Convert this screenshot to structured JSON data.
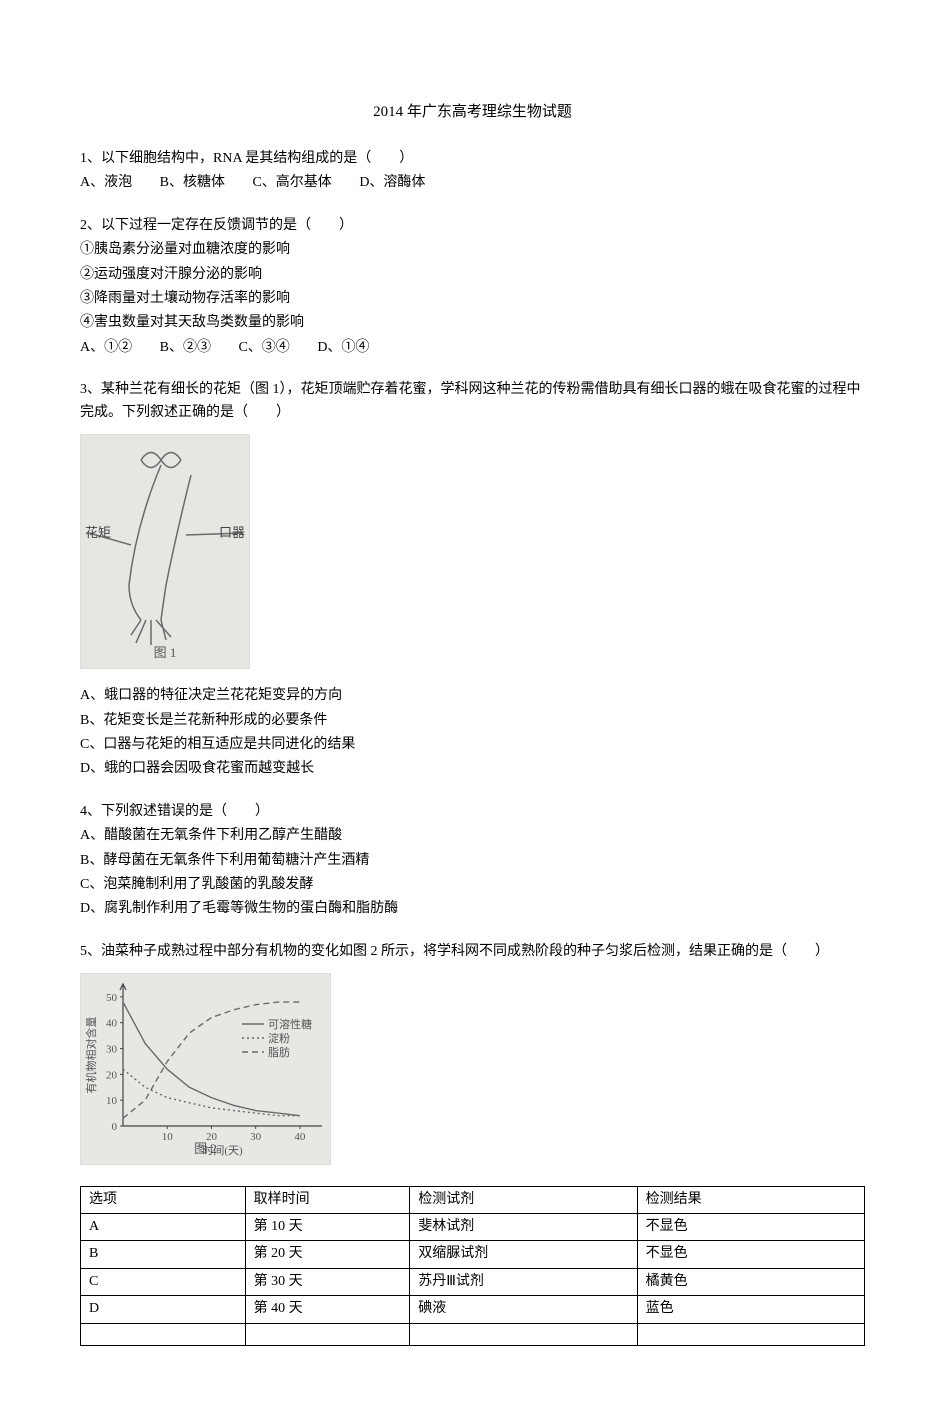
{
  "page_title": "2014 年广东高考理综生物试题",
  "q1": {
    "text": "1、以下细胞结构中，RNA 是其结构组成的是（　　）",
    "options": {
      "A": "A、液泡",
      "B": "B、核糖体",
      "C": "C、高尔基体",
      "D": "D、溶酶体"
    }
  },
  "q2": {
    "text": "2、以下过程一定存在反馈调节的是（　　）",
    "items": {
      "i1": "①胰岛素分泌量对血糖浓度的影响",
      "i2": "②运动强度对汗腺分泌的影响",
      "i3": "③降雨量对土壤动物存活率的影响",
      "i4": "④害虫数量对其天敌鸟类数量的影响"
    },
    "options": {
      "A": "A、①②",
      "B": "B、②③",
      "C": "C、③④",
      "D": "D、①④"
    }
  },
  "q3": {
    "text": "3、某种兰花有细长的花矩（图 1），花矩顶端贮存着花蜜，学科网这种兰花的传粉需借助具有细长口器的蛾在吸食花蜜的过程中完成。下列叙述正确的是（　　）",
    "fig": {
      "caption": "图 1",
      "label_left": "花矩",
      "label_right": "口器",
      "bg": "#e8e6e2"
    },
    "options": {
      "A": "A、蛾口器的特征决定兰花花矩变异的方向",
      "B": "B、花矩变长是兰花新种形成的必要条件",
      "C": "C、口器与花矩的相互适应是共同进化的结果",
      "D": "D、蛾的口器会因吸食花蜜而越变越长"
    }
  },
  "q4": {
    "text": "4、下列叙述错误的是（　　）",
    "options": {
      "A": "A、醋酸菌在无氧条件下利用乙醇产生醋酸",
      "B": "B、酵母菌在无氧条件下利用葡萄糖汁产生酒精",
      "C": "C、泡菜腌制利用了乳酸菌的乳酸发酵",
      "D": "D、腐乳制作利用了毛霉等微生物的蛋白酶和脂肪酶"
    }
  },
  "q5": {
    "text": "5、油菜种子成熟过程中部分有机物的变化如图 2 所示，将学科网不同成熟阶段的种子匀浆后检测，结果正确的是（　　）",
    "chart": {
      "caption": "图 2",
      "bg": "#e9e7e3",
      "ylabel": "有机物相对含量",
      "xlabel": "时间(天)",
      "yticks": [
        "0",
        "10",
        "20",
        "30",
        "40",
        "50"
      ],
      "xticks": [
        "10",
        "20",
        "30",
        "40"
      ],
      "legend": {
        "s1": "可溶性糖",
        "s2": "淀粉",
        "s3": "脂肪"
      },
      "line_color": "#6a6a6a",
      "text_color": "#555555",
      "axis_color": "#444444",
      "series": {
        "sugar": [
          [
            0,
            48
          ],
          [
            5,
            32
          ],
          [
            10,
            22
          ],
          [
            15,
            15
          ],
          [
            20,
            11
          ],
          [
            25,
            8
          ],
          [
            30,
            6
          ],
          [
            35,
            5
          ],
          [
            40,
            4
          ]
        ],
        "starch": [
          [
            0,
            22
          ],
          [
            5,
            15
          ],
          [
            10,
            11
          ],
          [
            15,
            9
          ],
          [
            20,
            7
          ],
          [
            25,
            6
          ],
          [
            30,
            5
          ],
          [
            35,
            4
          ],
          [
            40,
            4
          ]
        ],
        "fat": [
          [
            0,
            3
          ],
          [
            5,
            10
          ],
          [
            10,
            25
          ],
          [
            15,
            36
          ],
          [
            20,
            42
          ],
          [
            25,
            45
          ],
          [
            30,
            47
          ],
          [
            35,
            48
          ],
          [
            40,
            48
          ]
        ]
      },
      "xlim": [
        0,
        45
      ],
      "ylim": [
        0,
        55
      ]
    },
    "table": {
      "headers": {
        "option": "选项",
        "time": "取样时间",
        "reagent": "检测试剂",
        "result": "检测结果"
      },
      "rows": [
        {
          "option": "A",
          "time": "第 10 天",
          "reagent": "斐林试剂",
          "result": "不显色"
        },
        {
          "option": "B",
          "time": "第 20 天",
          "reagent": "双缩脲试剂",
          "result": "不显色"
        },
        {
          "option": "C",
          "time": "第 30 天",
          "reagent": "苏丹Ⅲ试剂",
          "result": "橘黄色"
        },
        {
          "option": "D",
          "time": "第 40 天",
          "reagent": "碘液",
          "result": "蓝色"
        }
      ]
    }
  }
}
